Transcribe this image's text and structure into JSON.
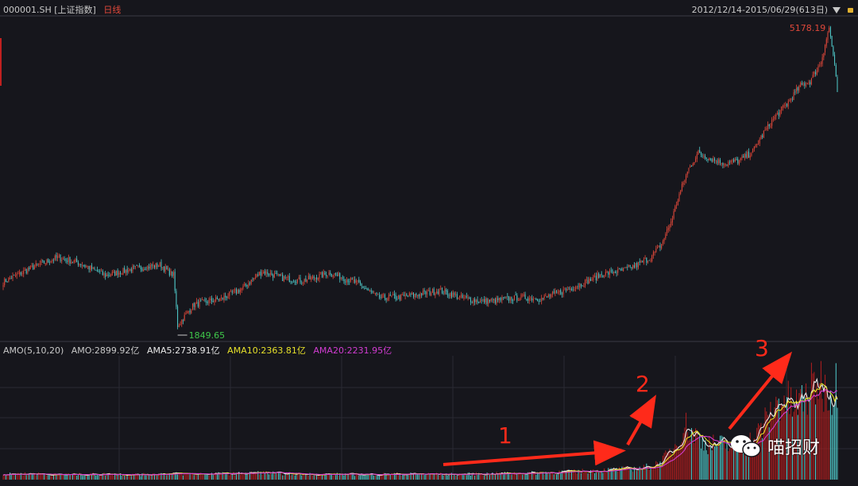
{
  "header": {
    "symbol": "000001.SH",
    "index_name": "[上证指数]",
    "timeframe": "日线",
    "date_range": "2012/12/14-2015/06/29(613日)"
  },
  "indicator": {
    "title": "AMO(5,10,20)",
    "amo": "AMO:2899.92亿",
    "ama5": "AMA5:2738.91亿",
    "ama10": "AMA10:2363.81亿",
    "ama20": "AMA20:2231.95亿"
  },
  "annotations": {
    "arrow1": "1",
    "arrow2": "2",
    "arrow3": "3"
  },
  "watermark": {
    "text": "喵招财"
  },
  "colors": {
    "up": "#e0483a",
    "down": "#4fc8c8",
    "ma5": "#e8e8e8",
    "ma10": "#e6e02a",
    "ma20": "#d23cd2",
    "grid": "#2a2a33"
  },
  "chart_data": {
    "type": "candlestick",
    "x_range": [
      "2012/12/14",
      "2015/06/29"
    ],
    "trading_days": 613,
    "y_labels": {
      "high": "5178.19",
      "low": "1849.65"
    },
    "y_range": [
      1849.65,
      5178.19
    ],
    "price_path": [
      [
        0,
        2150
      ],
      [
        25,
        2280
      ],
      [
        40,
        2340
      ],
      [
        55,
        2300
      ],
      [
        75,
        2200
      ],
      [
        95,
        2250
      ],
      [
        115,
        2280
      ],
      [
        125,
        2200
      ],
      [
        128,
        1849.65
      ],
      [
        140,
        1990
      ],
      [
        160,
        2030
      ],
      [
        175,
        2100
      ],
      [
        190,
        2230
      ],
      [
        205,
        2180
      ],
      [
        220,
        2160
      ],
      [
        240,
        2220
      ],
      [
        260,
        2140
      ],
      [
        275,
        2040
      ],
      [
        290,
        2040
      ],
      [
        305,
        2060
      ],
      [
        320,
        2090
      ],
      [
        335,
        2040
      ],
      [
        350,
        2010
      ],
      [
        365,
        2020
      ],
      [
        380,
        2040
      ],
      [
        395,
        2030
      ],
      [
        410,
        2080
      ],
      [
        425,
        2140
      ],
      [
        440,
        2210
      ],
      [
        455,
        2240
      ],
      [
        465,
        2280
      ],
      [
        475,
        2340
      ],
      [
        483,
        2450
      ],
      [
        490,
        2650
      ],
      [
        497,
        2950
      ],
      [
        503,
        3180
      ],
      [
        510,
        3360
      ],
      [
        520,
        3290
      ],
      [
        530,
        3240
      ],
      [
        540,
        3270
      ],
      [
        550,
        3380
      ],
      [
        558,
        3600
      ],
      [
        566,
        3800
      ],
      [
        575,
        3980
      ],
      [
        585,
        4240
      ],
      [
        592,
        4300
      ],
      [
        600,
        4600
      ],
      [
        606,
        5178.19
      ],
      [
        609,
        4700
      ],
      [
        612,
        4150
      ]
    ],
    "volume_series": {
      "name": "AMO",
      "unit": "亿",
      "last": 2899.92
    },
    "moving_averages": [
      {
        "name": "AMA5",
        "last": 2738.91
      },
      {
        "name": "AMA10",
        "last": 2363.81
      },
      {
        "name": "AMA20",
        "last": 2231.95
      }
    ],
    "volume_path": [
      [
        0,
        150
      ],
      [
        20,
        170
      ],
      [
        40,
        140
      ],
      [
        60,
        150
      ],
      [
        80,
        160
      ],
      [
        100,
        140
      ],
      [
        120,
        170
      ],
      [
        140,
        160
      ],
      [
        170,
        170
      ],
      [
        190,
        200
      ],
      [
        210,
        160
      ],
      [
        240,
        150
      ],
      [
        270,
        150
      ],
      [
        300,
        160
      ],
      [
        330,
        150
      ],
      [
        360,
        170
      ],
      [
        390,
        190
      ],
      [
        420,
        230
      ],
      [
        450,
        280
      ],
      [
        470,
        330
      ],
      [
        482,
        480
      ],
      [
        492,
        880
      ],
      [
        500,
        1550
      ],
      [
        508,
        1250
      ],
      [
        518,
        1000
      ],
      [
        528,
        1000
      ],
      [
        540,
        900
      ],
      [
        552,
        1200
      ],
      [
        562,
        1800
      ],
      [
        572,
        2350
      ],
      [
        580,
        2000
      ],
      [
        590,
        2400
      ],
      [
        598,
        2800
      ],
      [
        604,
        2600
      ],
      [
        610,
        2450
      ],
      [
        612,
        2899.92
      ]
    ]
  }
}
